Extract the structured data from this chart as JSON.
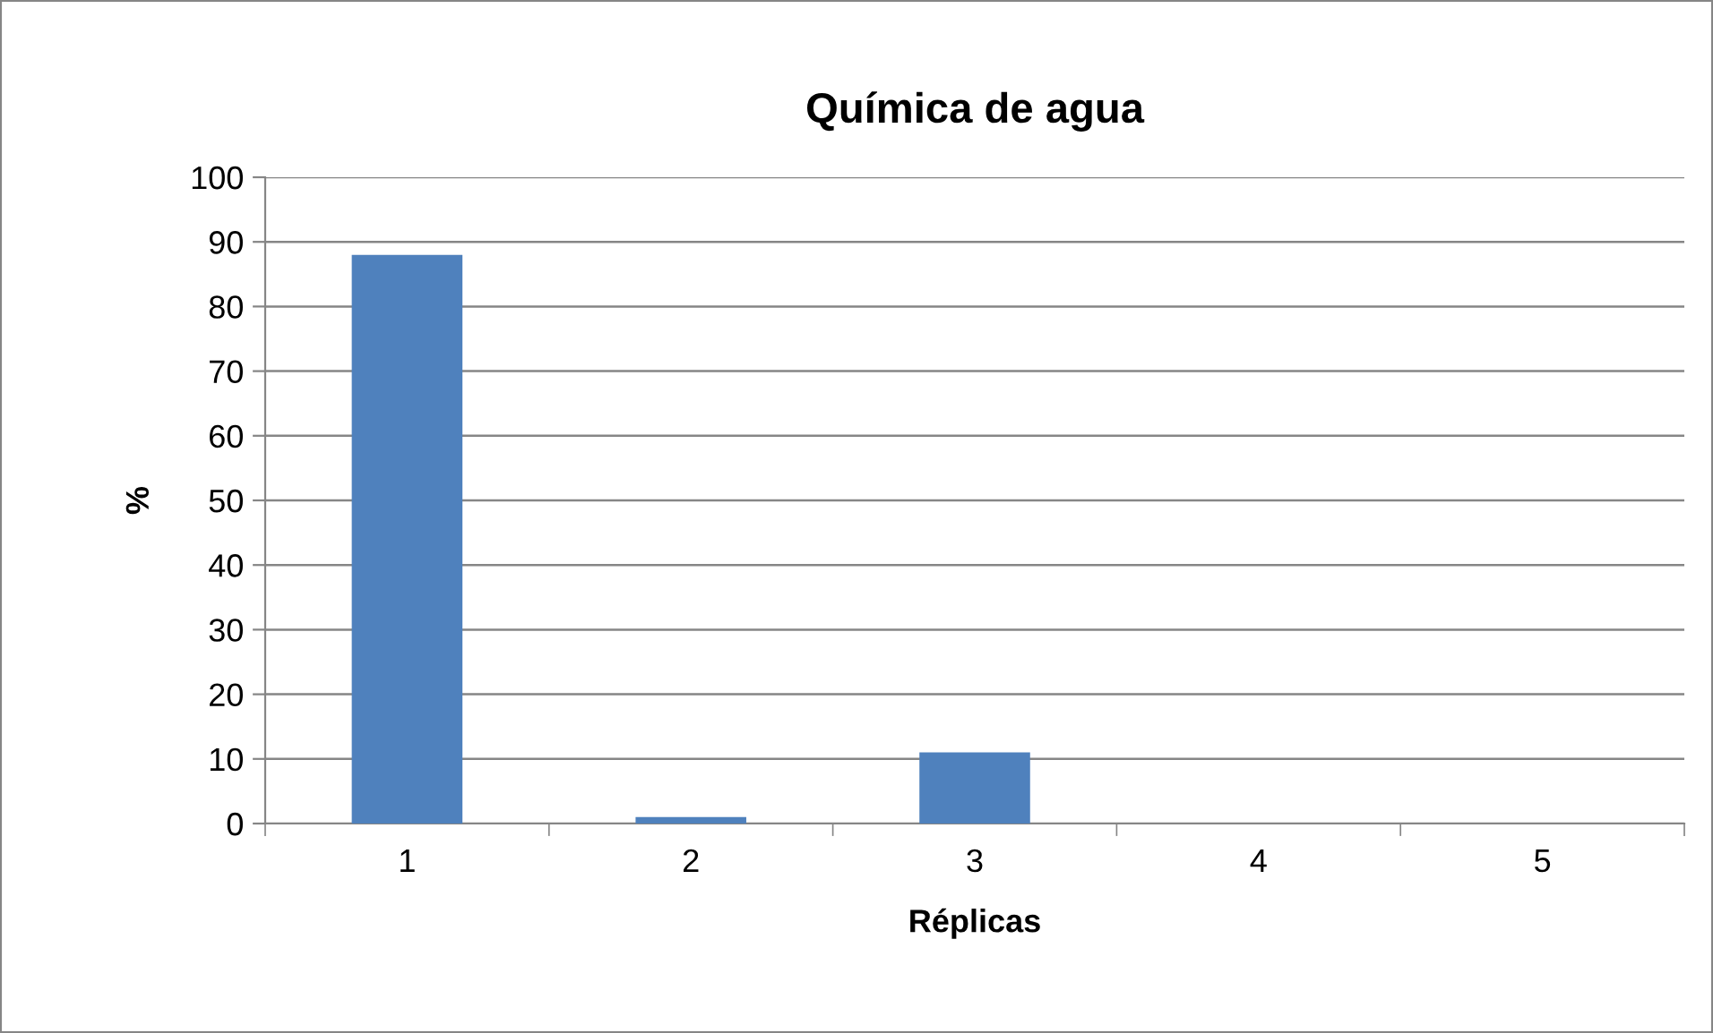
{
  "chart_data": {
    "type": "bar",
    "title": "Química de agua",
    "xlabel": "Réplicas",
    "ylabel": "%",
    "categories": [
      "1",
      "2",
      "3",
      "4",
      "5"
    ],
    "values": [
      88,
      1,
      11,
      0,
      0
    ],
    "color": "#4f81bd",
    "ylim": [
      0,
      100
    ],
    "yticks": [
      0,
      10,
      20,
      30,
      40,
      50,
      60,
      70,
      80,
      90,
      100
    ],
    "grid": "y",
    "legend": false
  }
}
